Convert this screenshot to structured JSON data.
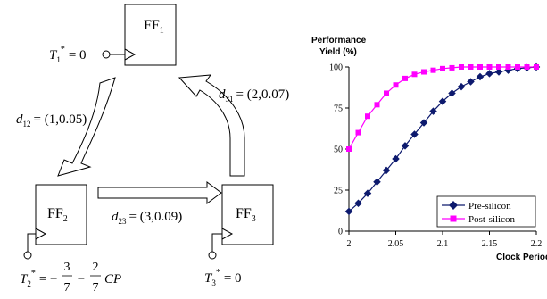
{
  "diagram": {
    "flipflops": [
      {
        "name": "FF",
        "sub": "1"
      },
      {
        "name": "FF",
        "sub": "2"
      },
      {
        "name": "FF",
        "sub": "3"
      }
    ],
    "clock_labels": {
      "t1": {
        "var": "T",
        "sub": "1",
        "sup": "*",
        "rhs": "= 0"
      },
      "t2": {
        "var": "T",
        "sub": "2",
        "sup": "*",
        "rhs_prefix": "= −",
        "f1_num": "3",
        "f1_den": "7",
        "minus": "−",
        "f2_num": "2",
        "f2_den": "7",
        "suffix": "CP"
      },
      "t3": {
        "var": "T",
        "sub": "3",
        "sup": "*",
        "rhs": "= 0"
      }
    },
    "edges": {
      "d12": {
        "var": "d",
        "sub": "12",
        "rhs": "= (1,0.05)"
      },
      "d23": {
        "var": "d",
        "sub": "23",
        "rhs": "= (3,0.09)"
      },
      "d31": {
        "var": "d",
        "sub": "31",
        "rhs": "= (2,0.07)"
      }
    }
  },
  "chart_data": {
    "type": "line",
    "ylabel_line1": "Performance",
    "ylabel_line2": "Yield (%)",
    "xlabel": "Clock Period",
    "xlim": [
      2,
      2.2
    ],
    "ylim": [
      0,
      100
    ],
    "xticks": [
      "2",
      "2.05",
      "2.1",
      "2.15",
      "2.2"
    ],
    "yticks": [
      "0",
      "25",
      "50",
      "75",
      "100"
    ],
    "grid": false,
    "legend_position": "bottom-right",
    "series": [
      {
        "name": "Pre-silicon",
        "color": "#0d1a6e",
        "marker": "diamond",
        "x": [
          2.0,
          2.01,
          2.02,
          2.03,
          2.04,
          2.05,
          2.06,
          2.07,
          2.08,
          2.09,
          2.1,
          2.11,
          2.12,
          2.13,
          2.14,
          2.15,
          2.16,
          2.17,
          2.18,
          2.19,
          2.2
        ],
        "values": [
          12,
          17,
          23,
          30,
          37,
          44,
          52,
          59,
          66,
          73,
          79,
          84,
          88,
          91,
          94,
          96,
          97,
          98,
          99,
          99.5,
          100
        ]
      },
      {
        "name": "Post-silicon",
        "color": "#ff00ff",
        "marker": "square",
        "x": [
          2.0,
          2.01,
          2.02,
          2.03,
          2.04,
          2.05,
          2.06,
          2.07,
          2.08,
          2.09,
          2.1,
          2.11,
          2.12,
          2.13,
          2.14,
          2.15,
          2.16,
          2.17,
          2.18,
          2.19,
          2.2
        ],
        "values": [
          50,
          60,
          70,
          77,
          84,
          89,
          93,
          95.5,
          97,
          98,
          99,
          99.5,
          100,
          100,
          100,
          100,
          100,
          100,
          100,
          100,
          100
        ]
      }
    ]
  }
}
